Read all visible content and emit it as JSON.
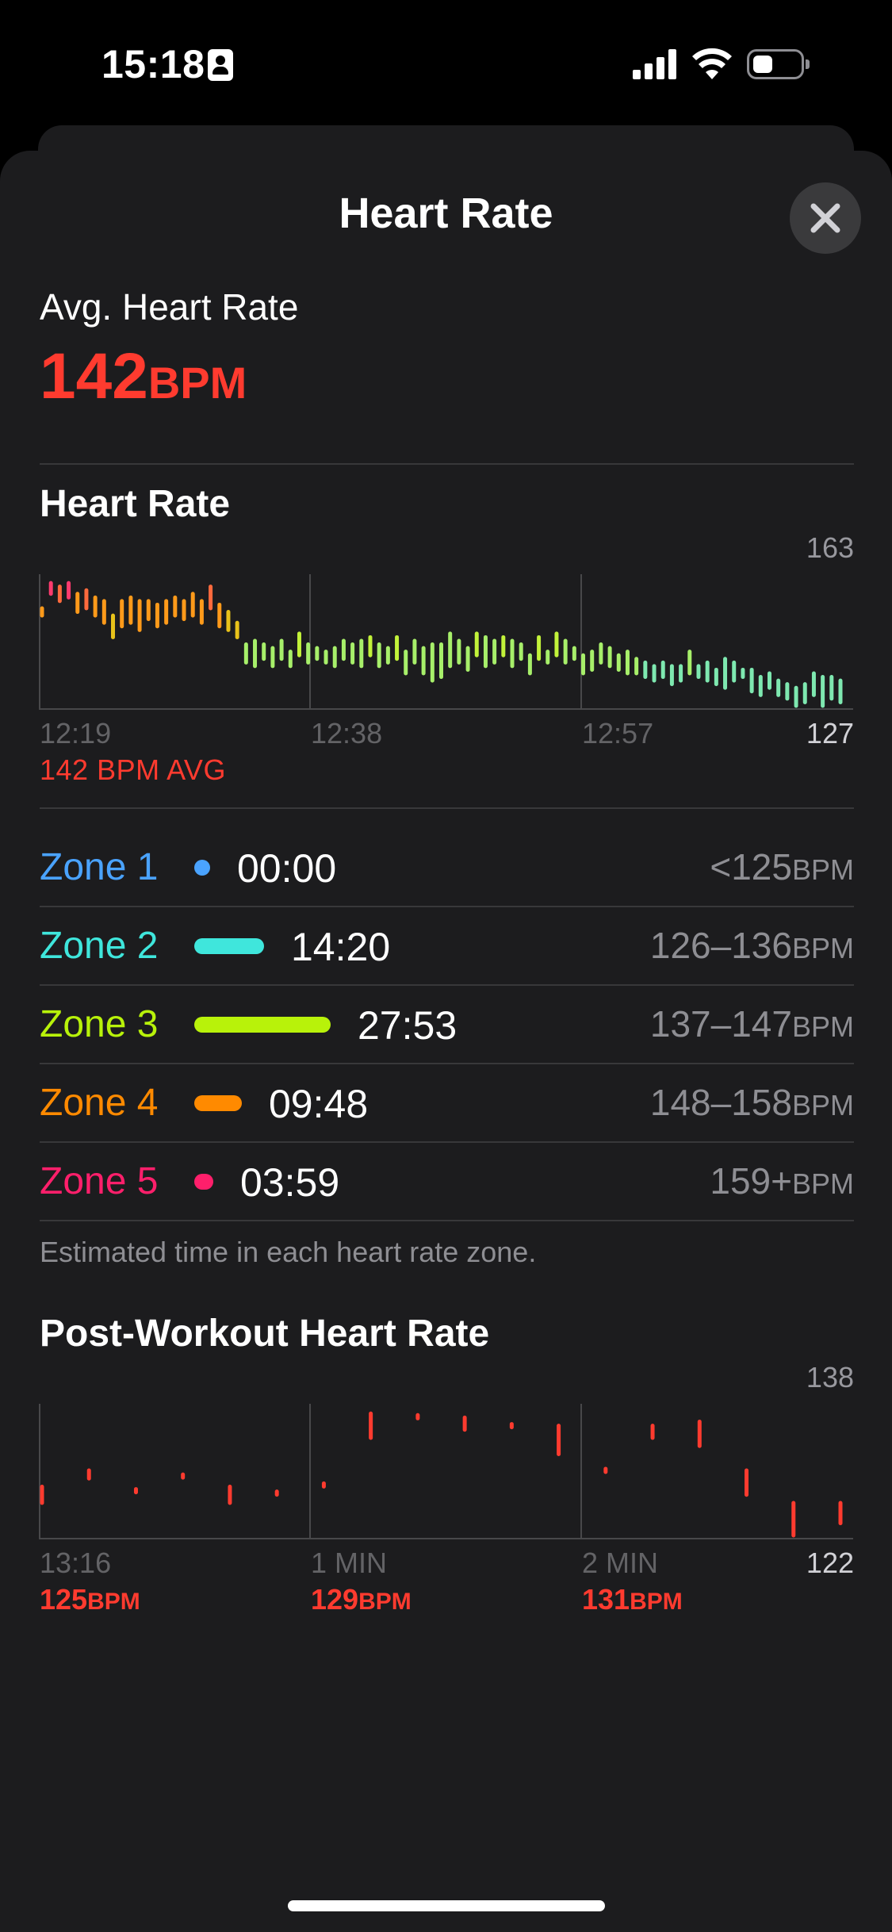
{
  "status": {
    "time": "15:18"
  },
  "sheet": {
    "title": "Heart Rate"
  },
  "summary": {
    "label": "Avg. Heart Rate",
    "value": "142",
    "unit": "BPM"
  },
  "heart_rate_chart": {
    "title": "Heart Rate",
    "y_max_label": "163",
    "y_min_label": "127",
    "x_ticks": [
      "12:19",
      "12:38",
      "12:57"
    ],
    "avg_caption": "142 BPM AVG"
  },
  "zones": [
    {
      "name": "Zone 1",
      "time": "00:00",
      "range": "<125",
      "unit": "BPM",
      "color": "#4aa3ff",
      "fraction": 0.0
    },
    {
      "name": "Zone 2",
      "time": "14:20",
      "range": "126–136",
      "unit": "BPM",
      "color": "#3fe6dc",
      "fraction": 0.51
    },
    {
      "name": "Zone 3",
      "time": "27:53",
      "range": "137–147",
      "unit": "BPM",
      "color": "#b8f20a",
      "fraction": 1.0
    },
    {
      "name": "Zone 4",
      "time": "09:48",
      "range": "148–158",
      "unit": "BPM",
      "color": "#ff8a00",
      "fraction": 0.35
    },
    {
      "name": "Zone 5",
      "time": "03:59",
      "range": "159+",
      "unit": "BPM",
      "color": "#ff1f6b",
      "fraction": 0.14
    }
  ],
  "zone_note": "Estimated time in each heart rate zone.",
  "post_workout_chart": {
    "title": "Post-Workout Heart Rate",
    "y_max_label": "138",
    "y_min_label": "122",
    "x_ticks": [
      "13:16",
      "1 MIN",
      "2 MIN"
    ],
    "minute_values": [
      {
        "value": "125",
        "unit": "BPM"
      },
      {
        "value": "129",
        "unit": "BPM"
      },
      {
        "value": "131",
        "unit": "BPM"
      }
    ]
  },
  "chart_data": [
    {
      "type": "bar",
      "title": "Heart Rate",
      "ylim": [
        127,
        163
      ],
      "x_ticks": [
        "12:19",
        "12:38",
        "12:57"
      ],
      "samples": [
        [
          152,
          154
        ],
        [
          158,
          161
        ],
        [
          156,
          160
        ],
        [
          157,
          161
        ],
        [
          153,
          158
        ],
        [
          154,
          159
        ],
        [
          152,
          157
        ],
        [
          150,
          156
        ],
        [
          146,
          152
        ],
        [
          149,
          156
        ],
        [
          150,
          157
        ],
        [
          148,
          156
        ],
        [
          151,
          156
        ],
        [
          149,
          155
        ],
        [
          150,
          156
        ],
        [
          152,
          157
        ],
        [
          151,
          156
        ],
        [
          152,
          158
        ],
        [
          150,
          156
        ],
        [
          154,
          160
        ],
        [
          149,
          155
        ],
        [
          148,
          153
        ],
        [
          146,
          150
        ],
        [
          139,
          144
        ],
        [
          138,
          145
        ],
        [
          140,
          144
        ],
        [
          138,
          143
        ],
        [
          140,
          145
        ],
        [
          138,
          142
        ],
        [
          141,
          147
        ],
        [
          139,
          144
        ],
        [
          140,
          143
        ],
        [
          139,
          142
        ],
        [
          138,
          143
        ],
        [
          140,
          145
        ],
        [
          139,
          144
        ],
        [
          138,
          145
        ],
        [
          141,
          146
        ],
        [
          138,
          144
        ],
        [
          139,
          143
        ],
        [
          140,
          146
        ],
        [
          136,
          142
        ],
        [
          139,
          145
        ],
        [
          136,
          143
        ],
        [
          134,
          144
        ],
        [
          135,
          144
        ],
        [
          138,
          147
        ],
        [
          139,
          145
        ],
        [
          137,
          143
        ],
        [
          141,
          147
        ],
        [
          138,
          146
        ],
        [
          139,
          145
        ],
        [
          141,
          146
        ],
        [
          138,
          145
        ],
        [
          140,
          144
        ],
        [
          136,
          141
        ],
        [
          140,
          146
        ],
        [
          139,
          142
        ],
        [
          141,
          147
        ],
        [
          139,
          145
        ],
        [
          140,
          143
        ],
        [
          136,
          141
        ],
        [
          137,
          142
        ],
        [
          139,
          144
        ],
        [
          138,
          143
        ],
        [
          137,
          141
        ],
        [
          136,
          142
        ],
        [
          136,
          140
        ],
        [
          135,
          139
        ],
        [
          134,
          138
        ],
        [
          135,
          139
        ],
        [
          133,
          138
        ],
        [
          134,
          138
        ],
        [
          136,
          142
        ],
        [
          135,
          138
        ],
        [
          134,
          139
        ],
        [
          133,
          137
        ],
        [
          132,
          140
        ],
        [
          134,
          139
        ],
        [
          135,
          137
        ],
        [
          131,
          137
        ],
        [
          130,
          135
        ],
        [
          132,
          136
        ],
        [
          130,
          134
        ],
        [
          129,
          133
        ],
        [
          127,
          132
        ],
        [
          128,
          133
        ],
        [
          130,
          136
        ],
        [
          127,
          135
        ],
        [
          129,
          135
        ],
        [
          128,
          134
        ]
      ]
    },
    {
      "type": "bar",
      "title": "Post-Workout Heart Rate",
      "ylim": [
        122,
        138
      ],
      "x_ticks": [
        "13:16",
        "1 MIN",
        "2 MIN"
      ],
      "samples": [
        [
          126,
          128
        ],
        [
          129,
          130
        ],
        [
          127.5,
          127.7
        ],
        [
          129.3,
          129.5
        ],
        [
          126,
          128
        ],
        [
          127.2,
          127.4
        ],
        [
          128.2,
          128.4
        ],
        [
          134,
          137
        ],
        [
          136.6,
          136.8
        ],
        [
          135,
          136.5
        ],
        [
          135.5,
          135.7
        ],
        [
          132,
          135.5
        ],
        [
          130,
          130.2
        ],
        [
          134,
          135.5
        ],
        [
          133,
          136
        ],
        [
          127,
          130
        ],
        [
          122,
          126
        ],
        [
          123.5,
          126
        ]
      ]
    }
  ]
}
